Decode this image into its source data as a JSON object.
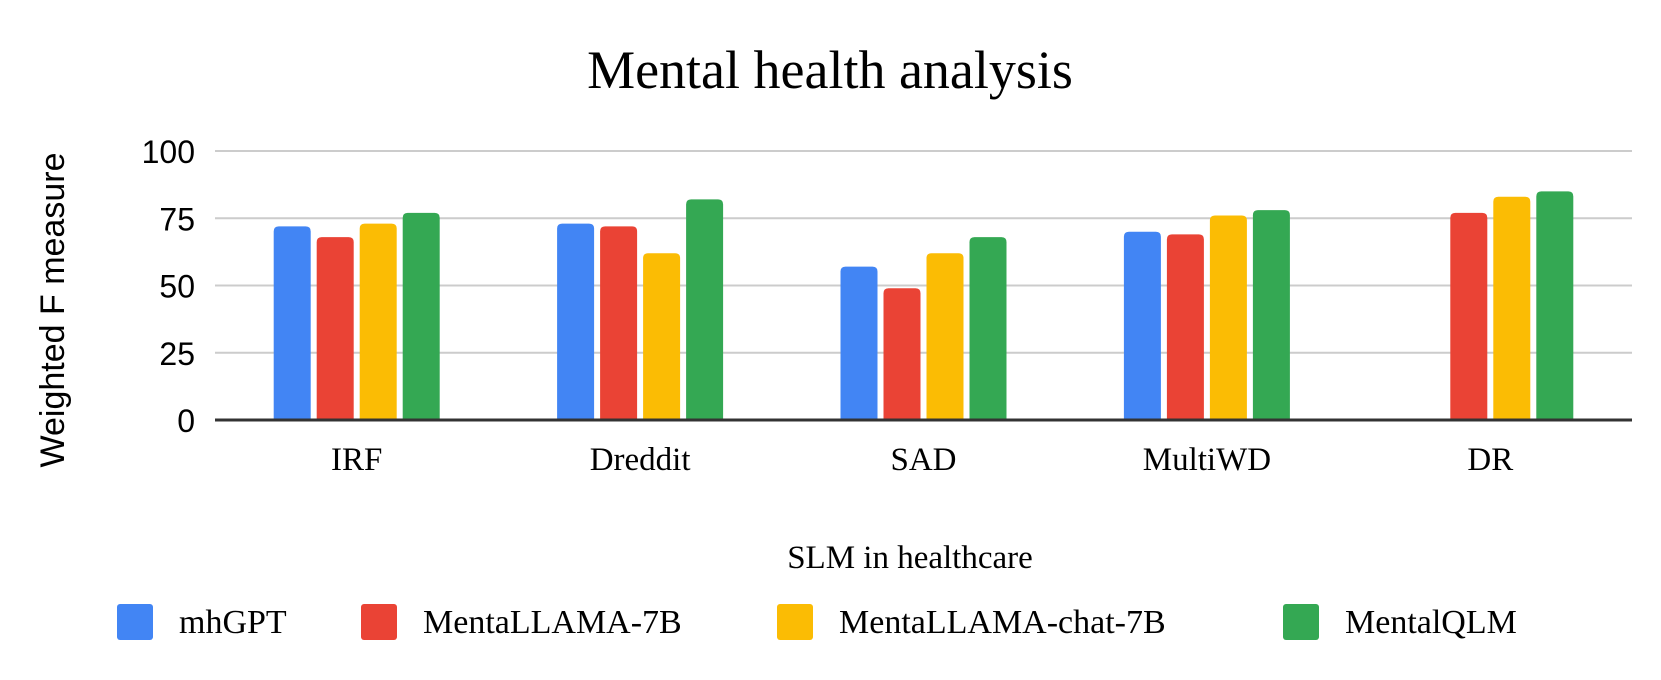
{
  "chart_data": {
    "type": "bar",
    "title": "Mental health analysis",
    "xlabel": "SLM in healthcare",
    "ylabel": "Weighted F measure",
    "ylim": [
      0,
      100
    ],
    "yticks": [
      0,
      25,
      50,
      75,
      100
    ],
    "ytick_labels": [
      "0",
      "25",
      "50",
      "75",
      "100"
    ],
    "grid": true,
    "legend_position": "bottom",
    "categories": [
      "IRF",
      "Dreddit",
      "SAD",
      "MultiWD",
      "DR"
    ],
    "series": [
      {
        "name": "mhGPT",
        "color": "#4285F4",
        "values": [
          72,
          73,
          57,
          70,
          null
        ]
      },
      {
        "name": "MentaLLAMA-7B",
        "color": "#EA4335",
        "values": [
          68,
          72,
          49,
          69,
          77
        ]
      },
      {
        "name": "MentaLLAMA-chat-7B",
        "color": "#FBBC04",
        "values": [
          73,
          62,
          62,
          76,
          83
        ]
      },
      {
        "name": "MentalQLM",
        "color": "#34A853",
        "values": [
          77,
          82,
          68,
          78,
          85
        ]
      }
    ],
    "gridline_color": "#cccccc",
    "axis_color": "#333333"
  }
}
